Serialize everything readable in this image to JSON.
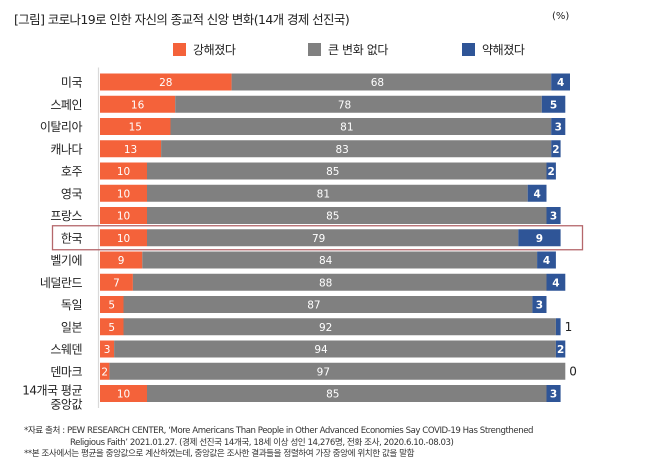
{
  "header": {
    "title": "[그림] 코로나19로 인한 자신의 종교적 신앙 변화(14개 경제 선진국)",
    "unit": "(%)"
  },
  "chart_data": {
    "type": "bar",
    "orientation": "horizontal",
    "stacked": true,
    "title": "[그림] 코로나19로 인한 자신의 종교적 신앙 변화(14개 경제 선진국)",
    "unit": "%",
    "xlabel": "",
    "ylabel": "",
    "xlim": [
      0,
      100
    ],
    "grid": false,
    "legend_position": "top-center",
    "categories": [
      "미국",
      "스페인",
      "이탈리아",
      "캐나다",
      "호주",
      "영국",
      "프랑스",
      "한국",
      "벨기에",
      "네덜란드",
      "독일",
      "일본",
      "스웨덴",
      "덴마크",
      "14개국 평균 중앙값"
    ],
    "category_lines": [
      [
        "미국"
      ],
      [
        "스페인"
      ],
      [
        "이탈리아"
      ],
      [
        "캐나다"
      ],
      [
        "호주"
      ],
      [
        "영국"
      ],
      [
        "프랑스"
      ],
      [
        "한국"
      ],
      [
        "벨기에"
      ],
      [
        "네덜란드"
      ],
      [
        "독일"
      ],
      [
        "일본"
      ],
      [
        "스웨덴"
      ],
      [
        "덴마크"
      ],
      [
        "14개국 평균",
        "중앙값"
      ]
    ],
    "highlighted_category": "한국",
    "series": [
      {
        "name": "강해졌다",
        "color": "#F4623A",
        "values": [
          28,
          16,
          15,
          13,
          10,
          10,
          10,
          10,
          9,
          7,
          5,
          5,
          3,
          2,
          10
        ]
      },
      {
        "name": "큰 변화 없다",
        "color": "#808080",
        "values": [
          68,
          78,
          81,
          83,
          85,
          81,
          85,
          79,
          84,
          88,
          87,
          92,
          94,
          97,
          85
        ]
      },
      {
        "name": "약해졌다",
        "color": "#2F5597",
        "values": [
          4,
          5,
          3,
          2,
          2,
          4,
          3,
          9,
          4,
          4,
          3,
          1,
          2,
          0,
          3
        ]
      }
    ],
    "highlight_color": "#B5676B"
  },
  "notes": {
    "line1": "*자료 출처 : PEW RESEARCH CENTER, ‘More Americans Than People in Other  Advanced Economies Say COVID-19 Has Strengthened",
    "line2": "Religious Faith’ 2021.01.27. (경제 선진국 14개국, 18세 이상 성인 14,276명, 전화 조사, 2020.6.10.-08.03)",
    "line3": "**본 조사에서는 평균을 중앙값으로 계산하였는데, 중앙값은 조사한 결과들을 정렬하여 가장 중앙에 위치한 값을 말함"
  }
}
